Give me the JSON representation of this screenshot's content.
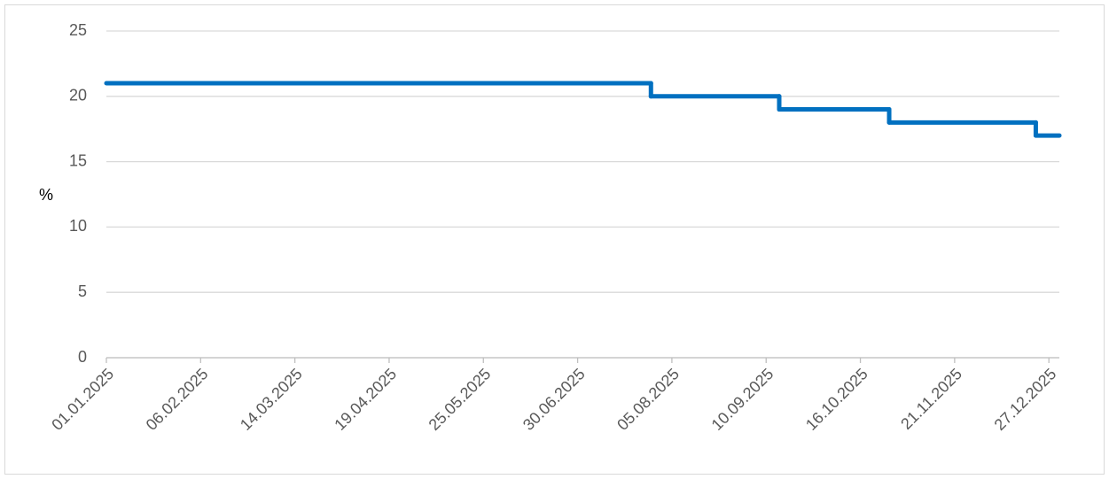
{
  "chart_data": {
    "type": "step",
    "y_label": "%",
    "x": [
      "01.01.2025",
      "28.07.2025",
      "15.09.2025",
      "27.10.2025",
      "22.12.2025"
    ],
    "series": [
      {
        "color": "#0070c0",
        "values": [
          21,
          20,
          19,
          18,
          17
        ]
      }
    ],
    "xlim": [
      "01.01.2025",
      "31.12.2025"
    ],
    "xticks": [
      "01.01.2025",
      "06.02.2025",
      "14.03.2025",
      "19.04.2025",
      "25.05.2025",
      "30.06.2025",
      "05.08.2025",
      "10.09.2025",
      "16.10.2025",
      "21.11.2025",
      "27.12.2025"
    ],
    "ylim": [
      0,
      25
    ],
    "yticks": [
      0,
      5,
      10,
      15,
      20,
      25
    ],
    "grid": true
  }
}
